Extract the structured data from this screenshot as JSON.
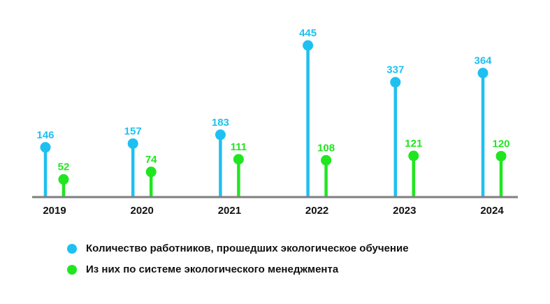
{
  "chart_data": {
    "type": "lollipop",
    "categories": [
      "2019",
      "2020",
      "2021",
      "2022",
      "2023",
      "2024"
    ],
    "series": [
      {
        "name": "Количество работников, прошедших экологическое обучение",
        "color": "#1ec0f2",
        "values": [
          146,
          157,
          183,
          445,
          337,
          364
        ]
      },
      {
        "name": "Из них по системе экологического менеджмента",
        "color": "#20e620",
        "values": [
          52,
          74,
          111,
          108,
          121,
          120
        ]
      }
    ],
    "ylim": [
      0,
      445
    ],
    "baseline_color": "#7f7f7f",
    "legend_position": "bottom"
  }
}
